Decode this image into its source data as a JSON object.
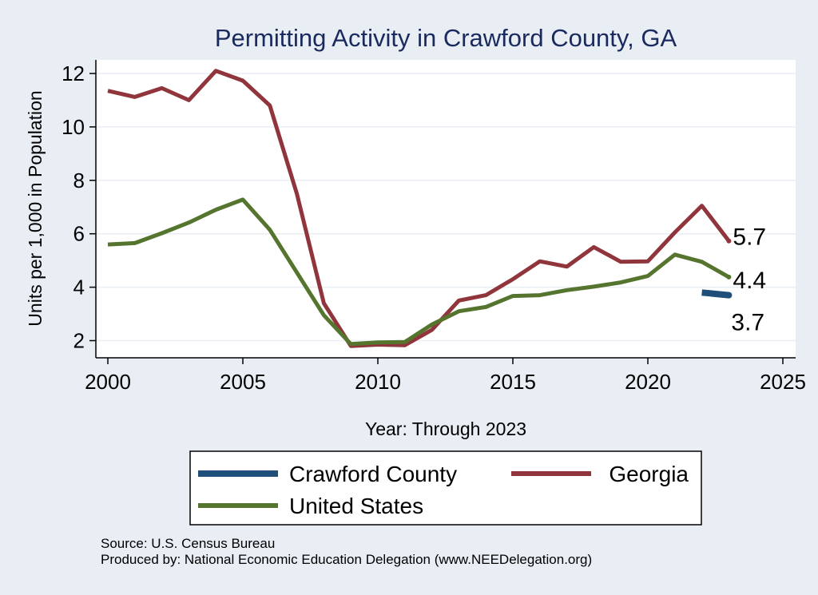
{
  "chart_data": {
    "type": "line",
    "title": "Permitting Activity in Crawford County, GA",
    "xlabel": "Year: Through 2023",
    "ylabel": "Units per 1,000 in Population",
    "xlim": [
      2000,
      2025
    ],
    "ylim": [
      1.5,
      12.6
    ],
    "xticks": [
      2000,
      2005,
      2010,
      2015,
      2020,
      2025
    ],
    "yticks": [
      2,
      4,
      6,
      8,
      10,
      12
    ],
    "grid": true,
    "legend_position": "bottom",
    "series": [
      {
        "name": "Crawford County",
        "color": "#1f4e79",
        "x": [
          2022,
          2023
        ],
        "y": [
          3.8,
          3.7
        ],
        "end_label": "3.7"
      },
      {
        "name": "Georgia",
        "color": "#90353b",
        "x": [
          2000,
          2001,
          2002,
          2003,
          2004,
          2005,
          2006,
          2007,
          2008,
          2009,
          2010,
          2011,
          2012,
          2013,
          2014,
          2015,
          2016,
          2017,
          2018,
          2019,
          2020,
          2021,
          2022,
          2023
        ],
        "y": [
          11.35,
          11.12,
          11.45,
          11.0,
          12.1,
          11.73,
          10.8,
          7.5,
          3.4,
          1.8,
          1.85,
          1.83,
          2.4,
          3.5,
          3.7,
          4.3,
          4.97,
          4.77,
          5.5,
          4.95,
          4.97,
          6.05,
          7.05,
          5.73
        ],
        "end_label": "5.7"
      },
      {
        "name": "United States",
        "color": "#55752f",
        "x": [
          2000,
          2001,
          2002,
          2003,
          2004,
          2005,
          2006,
          2007,
          2008,
          2009,
          2010,
          2011,
          2012,
          2013,
          2014,
          2015,
          2016,
          2017,
          2018,
          2019,
          2020,
          2021,
          2022,
          2023
        ],
        "y": [
          5.6,
          5.65,
          6.02,
          6.42,
          6.9,
          7.28,
          6.15,
          4.55,
          2.95,
          1.87,
          1.93,
          1.95,
          2.6,
          3.1,
          3.26,
          3.67,
          3.7,
          3.89,
          4.02,
          4.18,
          4.42,
          5.22,
          4.95,
          4.38
        ],
        "end_label": "4.4"
      }
    ]
  },
  "notes": {
    "source": "Source: U.S. Census Bureau",
    "produced_by": "Produced by: National Economic Education Delegation (www.NEEDelegation.org)"
  }
}
